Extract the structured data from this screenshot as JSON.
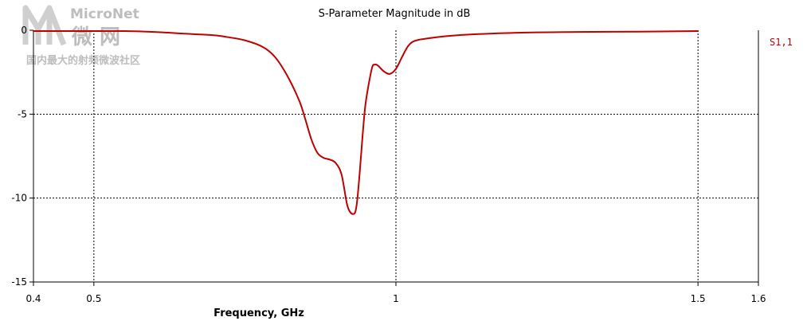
{
  "watermark": {
    "brand": "MicroNet",
    "chinese": "微 网",
    "slogan": "国内最大的射频微波社区"
  },
  "chart_data": {
    "type": "line",
    "title": "S-Parameter Magnitude in dB",
    "xlabel": "Frequency, GHz",
    "ylabel": "",
    "xlim": [
      0.4,
      1.6
    ],
    "ylim": [
      -15,
      0
    ],
    "xticks": [
      0.4,
      0.5,
      1,
      1.5,
      1.6
    ],
    "yticks": [
      0,
      -5,
      -10,
      -15
    ],
    "xtick_labels": [
      "0.4",
      "0.5",
      "1",
      "1.5",
      "1.6"
    ],
    "ytick_labels": [
      "0",
      "-5",
      "-10",
      "-15"
    ],
    "x_gridlines": [
      0.5,
      1.0,
      1.5
    ],
    "y_gridlines": [
      -5,
      -10
    ],
    "grid": true,
    "legend_position": "right",
    "series": [
      {
        "name": "S1,1",
        "color": "#c00000",
        "x": [
          0.4,
          0.45,
          0.5,
          0.55,
          0.6,
          0.65,
          0.7,
          0.72,
          0.75,
          0.78,
          0.8,
          0.82,
          0.84,
          0.85,
          0.86,
          0.87,
          0.88,
          0.89,
          0.9,
          0.91,
          0.92,
          0.93,
          0.935,
          0.94,
          0.945,
          0.95,
          0.96,
          0.965,
          0.97,
          0.98,
          0.99,
          1.0,
          1.01,
          1.02,
          1.03,
          1.05,
          1.1,
          1.2,
          1.3,
          1.4,
          1.5
        ],
        "y": [
          -0.05,
          -0.05,
          -0.05,
          -0.05,
          -0.1,
          -0.2,
          -0.3,
          -0.4,
          -0.6,
          -1.0,
          -1.6,
          -2.7,
          -4.2,
          -5.3,
          -6.5,
          -7.3,
          -7.6,
          -7.7,
          -7.9,
          -8.6,
          -10.5,
          -10.95,
          -10.4,
          -8.5,
          -6.2,
          -4.3,
          -2.3,
          -2.05,
          -2.1,
          -2.45,
          -2.6,
          -2.3,
          -1.6,
          -0.95,
          -0.65,
          -0.5,
          -0.3,
          -0.15,
          -0.1,
          -0.08,
          -0.05
        ]
      }
    ]
  }
}
